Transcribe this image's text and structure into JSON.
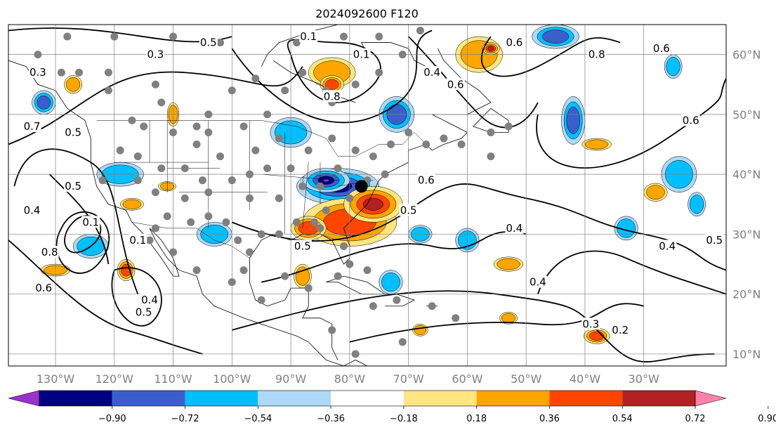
{
  "title": "2024092600 F120",
  "map": {
    "lon_min": -138,
    "lon_max": -16,
    "lat_min": 8,
    "lat_max": 65,
    "lon_ticks": [
      {
        "lon": -130,
        "label": "130°W"
      },
      {
        "lon": -120,
        "label": "120°W"
      },
      {
        "lon": -110,
        "label": "110°W"
      },
      {
        "lon": -100,
        "label": "100°W"
      },
      {
        "lon": -90,
        "label": "90°W"
      },
      {
        "lon": -80,
        "label": "80°W"
      },
      {
        "lon": -70,
        "label": "70°W"
      },
      {
        "lon": -60,
        "label": "60°W"
      },
      {
        "lon": -50,
        "label": "50°W"
      },
      {
        "lon": -40,
        "label": "40°W"
      },
      {
        "lon": -30,
        "label": "30°W"
      }
    ],
    "lat_ticks": [
      {
        "lat": 10,
        "label": "10°N"
      },
      {
        "lat": 20,
        "label": "20°N"
      },
      {
        "lat": 30,
        "label": "30°N"
      },
      {
        "lat": 40,
        "label": "40°N"
      },
      {
        "lat": 50,
        "label": "50°N"
      },
      {
        "lat": 60,
        "label": "60°N"
      }
    ],
    "contour_labels": [
      {
        "text": "0.5",
        "lon": -104,
        "lat": 62
      },
      {
        "text": "0.3",
        "lon": -113,
        "lat": 60
      },
      {
        "text": "0.1",
        "lon": -87,
        "lat": 63
      },
      {
        "text": "0.1",
        "lon": -78,
        "lat": 60
      },
      {
        "text": "0.3",
        "lon": -133,
        "lat": 57
      },
      {
        "text": "0.7",
        "lon": -134,
        "lat": 48
      },
      {
        "text": "0.5",
        "lon": -127,
        "lat": 47
      },
      {
        "text": "0.5",
        "lon": -127,
        "lat": 38
      },
      {
        "text": "0.4",
        "lon": -134,
        "lat": 34
      },
      {
        "text": "0.1",
        "lon": -124,
        "lat": 32
      },
      {
        "text": "0.8",
        "lon": -131,
        "lat": 27
      },
      {
        "text": "0.6",
        "lon": -132,
        "lat": 21
      },
      {
        "text": "0.1",
        "lon": -116,
        "lat": 29
      },
      {
        "text": "0.4",
        "lon": -114,
        "lat": 19
      },
      {
        "text": "0.5",
        "lon": -115,
        "lat": 17
      },
      {
        "text": "0.8",
        "lon": -83,
        "lat": 53
      },
      {
        "text": "0.4",
        "lon": -66,
        "lat": 57
      },
      {
        "text": "0.6",
        "lon": -62,
        "lat": 55
      },
      {
        "text": "0.6",
        "lon": -67,
        "lat": 39
      },
      {
        "text": "0.5",
        "lon": -70,
        "lat": 34
      },
      {
        "text": "0.5",
        "lon": -88,
        "lat": 28
      },
      {
        "text": "0.4",
        "lon": -52,
        "lat": 31
      },
      {
        "text": "0.4",
        "lon": -48,
        "lat": 22
      },
      {
        "text": "0.4",
        "lon": -26,
        "lat": 28
      },
      {
        "text": "0.5",
        "lon": -18,
        "lat": 29
      },
      {
        "text": "0.6",
        "lon": -22,
        "lat": 49
      },
      {
        "text": "0.6",
        "lon": -27,
        "lat": 61
      },
      {
        "text": "0.8",
        "lon": -38,
        "lat": 60
      },
      {
        "text": "0.6",
        "lon": -52,
        "lat": 62
      },
      {
        "text": "0.3",
        "lon": -39,
        "lat": 15
      },
      {
        "text": "0.2",
        "lon": -34,
        "lat": 14
      }
    ],
    "shading": [
      {
        "lon": -82,
        "lat": 38,
        "rx": 7,
        "ry": 3,
        "val": -0.8
      },
      {
        "lon": -84,
        "lat": 39,
        "rx": 4,
        "ry": 2,
        "val": -0.9
      },
      {
        "lon": -90,
        "lat": 47,
        "rx": 3.5,
        "ry": 2.5,
        "val": -0.5
      },
      {
        "lon": -72,
        "lat": 50,
        "rx": 3,
        "ry": 3,
        "val": -0.6
      },
      {
        "lon": -42,
        "lat": 49,
        "rx": 2,
        "ry": 4,
        "val": -0.6
      },
      {
        "lon": -24,
        "lat": 40,
        "rx": 3,
        "ry": 3,
        "val": -0.5
      },
      {
        "lon": -33,
        "lat": 31,
        "rx": 2,
        "ry": 2,
        "val": -0.4
      },
      {
        "lon": -21,
        "lat": 35,
        "rx": 1.5,
        "ry": 2,
        "val": -0.4
      },
      {
        "lon": -60,
        "lat": 29,
        "rx": 2,
        "ry": 2,
        "val": -0.4
      },
      {
        "lon": -68,
        "lat": 30,
        "rx": 2,
        "ry": 1.5,
        "val": -0.4
      },
      {
        "lon": -119,
        "lat": 40,
        "rx": 4,
        "ry": 2,
        "val": -0.5
      },
      {
        "lon": -103,
        "lat": 30,
        "rx": 3,
        "ry": 2,
        "val": -0.5
      },
      {
        "lon": -124,
        "lat": 28,
        "rx": 3,
        "ry": 2,
        "val": -0.4
      },
      {
        "lon": -45,
        "lat": 63,
        "rx": 4,
        "ry": 2,
        "val": -0.7
      },
      {
        "lon": -132,
        "lat": 52,
        "rx": 2,
        "ry": 2,
        "val": -0.6
      },
      {
        "lon": -25,
        "lat": 58,
        "rx": 1.5,
        "ry": 2,
        "val": -0.5
      },
      {
        "lon": -73,
        "lat": 22,
        "rx": 2,
        "ry": 2,
        "val": -0.4
      },
      {
        "lon": -83,
        "lat": 57,
        "rx": 4,
        "ry": 2.5,
        "val": 0.5
      },
      {
        "lon": -83,
        "lat": 55,
        "rx": 2,
        "ry": 1.5,
        "val": 0.75
      },
      {
        "lon": -80,
        "lat": 32,
        "rx": 8,
        "ry": 4,
        "val": 0.65
      },
      {
        "lon": -76,
        "lat": 35,
        "rx": 5,
        "ry": 3,
        "val": 0.8
      },
      {
        "lon": -87,
        "lat": 31,
        "rx": 3,
        "ry": 2,
        "val": 0.6
      },
      {
        "lon": -58,
        "lat": 60,
        "rx": 4,
        "ry": 3,
        "val": 0.55
      },
      {
        "lon": -56,
        "lat": 61,
        "rx": 1.5,
        "ry": 1,
        "val": 0.8
      },
      {
        "lon": -118,
        "lat": 24,
        "rx": 1.5,
        "ry": 1.8,
        "val": 0.7
      },
      {
        "lon": -130,
        "lat": 24,
        "rx": 2.5,
        "ry": 1,
        "val": 0.5
      },
      {
        "lon": -38,
        "lat": 45,
        "rx": 2.5,
        "ry": 1,
        "val": 0.5
      },
      {
        "lon": -28,
        "lat": 37,
        "rx": 2,
        "ry": 1.5,
        "val": 0.5
      },
      {
        "lon": -53,
        "lat": 25,
        "rx": 2.5,
        "ry": 1.2,
        "val": 0.5
      },
      {
        "lon": -38,
        "lat": 13,
        "rx": 2.2,
        "ry": 1.3,
        "val": 0.7
      },
      {
        "lon": -88,
        "lat": 23,
        "rx": 1.5,
        "ry": 2,
        "val": 0.5
      },
      {
        "lon": -111,
        "lat": 38,
        "rx": 1.5,
        "ry": 0.8,
        "val": 0.5
      },
      {
        "lon": -117,
        "lat": 35,
        "rx": 2,
        "ry": 1,
        "val": 0.5
      },
      {
        "lon": -110,
        "lat": 50,
        "rx": 1,
        "ry": 2,
        "val": 0.5
      },
      {
        "lon": -127,
        "lat": 55,
        "rx": 1.5,
        "ry": 1.5,
        "val": 0.5
      },
      {
        "lon": -68,
        "lat": 14,
        "rx": 1.3,
        "ry": 1,
        "val": 0.5
      },
      {
        "lon": -53,
        "lat": 16,
        "rx": 1.5,
        "ry": 1,
        "val": 0.5
      }
    ],
    "stations": [
      [
        -133,
        60
      ],
      [
        -129,
        57
      ],
      [
        -126,
        57
      ],
      [
        -121,
        57
      ],
      [
        -121,
        54
      ],
      [
        -113,
        55
      ],
      [
        -112,
        52
      ],
      [
        -117,
        49
      ],
      [
        -115,
        48
      ],
      [
        -110,
        47
      ],
      [
        -106,
        48
      ],
      [
        -104,
        47
      ],
      [
        -98,
        48
      ],
      [
        -94,
        50
      ],
      [
        -92,
        46
      ],
      [
        -91,
        54
      ],
      [
        -96,
        56
      ],
      [
        -88,
        57
      ],
      [
        -84,
        54
      ],
      [
        -100,
        54
      ],
      [
        -104,
        50
      ],
      [
        -96,
        44
      ],
      [
        -102,
        43
      ],
      [
        -106,
        45
      ],
      [
        -108,
        41
      ],
      [
        -112,
        41
      ],
      [
        -116,
        43
      ],
      [
        -119,
        44
      ],
      [
        -122,
        39
      ],
      [
        -116,
        39
      ],
      [
        -113,
        37
      ],
      [
        -108,
        36
      ],
      [
        -104,
        37
      ],
      [
        -100,
        39
      ],
      [
        -97,
        40
      ],
      [
        -94,
        41
      ],
      [
        -90,
        41
      ],
      [
        -87,
        44
      ],
      [
        -83,
        46
      ],
      [
        -79,
        44
      ],
      [
        -76,
        43
      ],
      [
        -73,
        45
      ],
      [
        -70,
        47
      ],
      [
        -67,
        45
      ],
      [
        -64,
        46
      ],
      [
        -61,
        45
      ],
      [
        -56,
        47
      ],
      [
        -53,
        48
      ],
      [
        -56,
        43
      ],
      [
        -74,
        40
      ],
      [
        -77,
        39
      ],
      [
        -80,
        36
      ],
      [
        -84,
        34
      ],
      [
        -86,
        32
      ],
      [
        -89,
        32
      ],
      [
        -92,
        30
      ],
      [
        -95,
        30
      ],
      [
        -97,
        27
      ],
      [
        -99,
        29
      ],
      [
        -101,
        32
      ],
      [
        -104,
        33
      ],
      [
        -107,
        32
      ],
      [
        -111,
        33
      ],
      [
        -113,
        31
      ],
      [
        -114,
        29
      ],
      [
        -110,
        27
      ],
      [
        -106,
        24
      ],
      [
        -100,
        22
      ],
      [
        -98,
        24
      ],
      [
        -95,
        19
      ],
      [
        -91,
        23
      ],
      [
        -87,
        21
      ],
      [
        -82,
        23
      ],
      [
        -80,
        25
      ],
      [
        -77,
        24
      ],
      [
        -76,
        18
      ],
      [
        -72,
        19
      ],
      [
        -66,
        18
      ],
      [
        -62,
        16
      ],
      [
        -71,
        12
      ],
      [
        -79,
        10
      ],
      [
        -83,
        14
      ],
      [
        -85,
        31
      ],
      [
        -81,
        28
      ],
      [
        -105,
        39
      ],
      [
        -97,
        36
      ],
      [
        -92,
        36
      ],
      [
        -88,
        38
      ],
      [
        -85,
        38
      ],
      [
        -82,
        41
      ],
      [
        -83,
        52
      ],
      [
        -79,
        55
      ],
      [
        -75,
        57
      ],
      [
        -71,
        60
      ],
      [
        -68,
        64
      ],
      [
        -75,
        63
      ],
      [
        -81,
        63
      ],
      [
        -89,
        62
      ],
      [
        -102,
        62
      ],
      [
        -110,
        63
      ],
      [
        -120,
        63
      ],
      [
        -128,
        63
      ]
    ],
    "marker": {
      "lon": -78,
      "lat": 38
    }
  },
  "colorbar": {
    "bins": [
      {
        "color": "#9932CC"
      },
      {
        "color": "#000080"
      },
      {
        "color": "#3A5FCD"
      },
      {
        "color": "#00BFFF"
      },
      {
        "color": "#ADD8F6"
      },
      {
        "color": "#FFFFFF"
      },
      {
        "color": "#FFE680"
      },
      {
        "color": "#FFA500"
      },
      {
        "color": "#FF4500"
      },
      {
        "color": "#B22222"
      },
      {
        "color": "#FF82AB"
      }
    ],
    "tick_labels": [
      "−0.90",
      "−0.72",
      "−0.54",
      "−0.36",
      "−0.18",
      "0.18",
      "0.36",
      "0.54",
      "0.72",
      "0.90"
    ]
  }
}
